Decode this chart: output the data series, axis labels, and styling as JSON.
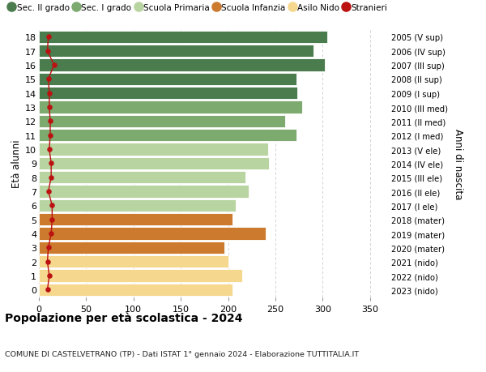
{
  "ages": [
    18,
    17,
    16,
    15,
    14,
    13,
    12,
    11,
    10,
    9,
    8,
    7,
    6,
    5,
    4,
    3,
    2,
    1,
    0
  ],
  "values": [
    305,
    290,
    302,
    272,
    273,
    278,
    260,
    272,
    242,
    243,
    218,
    222,
    208,
    205,
    240,
    196,
    200,
    215,
    205
  ],
  "stranieri": [
    10,
    9,
    16,
    10,
    11,
    11,
    12,
    12,
    11,
    13,
    13,
    10,
    14,
    14,
    13,
    10,
    9,
    11,
    9
  ],
  "right_labels": [
    "2005 (V sup)",
    "2006 (IV sup)",
    "2007 (III sup)",
    "2008 (II sup)",
    "2009 (I sup)",
    "2010 (III med)",
    "2011 (II med)",
    "2012 (I med)",
    "2013 (V ele)",
    "2014 (IV ele)",
    "2015 (III ele)",
    "2016 (II ele)",
    "2017 (I ele)",
    "2018 (mater)",
    "2019 (mater)",
    "2020 (mater)",
    "2021 (nido)",
    "2022 (nido)",
    "2023 (nido)"
  ],
  "bar_colors_by_age": {
    "18": "#4a7c4e",
    "17": "#4a7c4e",
    "16": "#4a7c4e",
    "15": "#4a7c4e",
    "14": "#4a7c4e",
    "13": "#7daa6f",
    "12": "#7daa6f",
    "11": "#7daa6f",
    "10": "#b8d4a0",
    "9": "#b8d4a0",
    "8": "#b8d4a0",
    "7": "#b8d4a0",
    "6": "#b8d4a0",
    "5": "#cc7a2e",
    "4": "#cc7a2e",
    "3": "#cc7a2e",
    "2": "#f5d78e",
    "1": "#f5d78e",
    "0": "#f5d78e"
  },
  "legend_labels": [
    "Sec. II grado",
    "Sec. I grado",
    "Scuola Primaria",
    "Scuola Infanzia",
    "Asilo Nido",
    "Stranieri"
  ],
  "legend_colors": [
    "#4a7c4e",
    "#7daa6f",
    "#b8d4a0",
    "#cc7a2e",
    "#f5d78e",
    "#bb1111"
  ],
  "title": "Popolazione per età scolastica - 2024",
  "subtitle": "COMUNE DI CASTELVETRANO (TP) - Dati ISTAT 1° gennaio 2024 - Elaborazione TUTTITALIA.IT",
  "ylabel_left": "Età alunni",
  "ylabel_right": "Anni di nascita",
  "xlim": [
    0,
    370
  ],
  "xticks": [
    0,
    50,
    100,
    150,
    200,
    250,
    300,
    350
  ],
  "stranieri_color": "#bb1111",
  "bg_color": "#ffffff",
  "grid_color": "#cccccc",
  "bar_edgecolor": "#ffffff",
  "bar_height": 0.88
}
